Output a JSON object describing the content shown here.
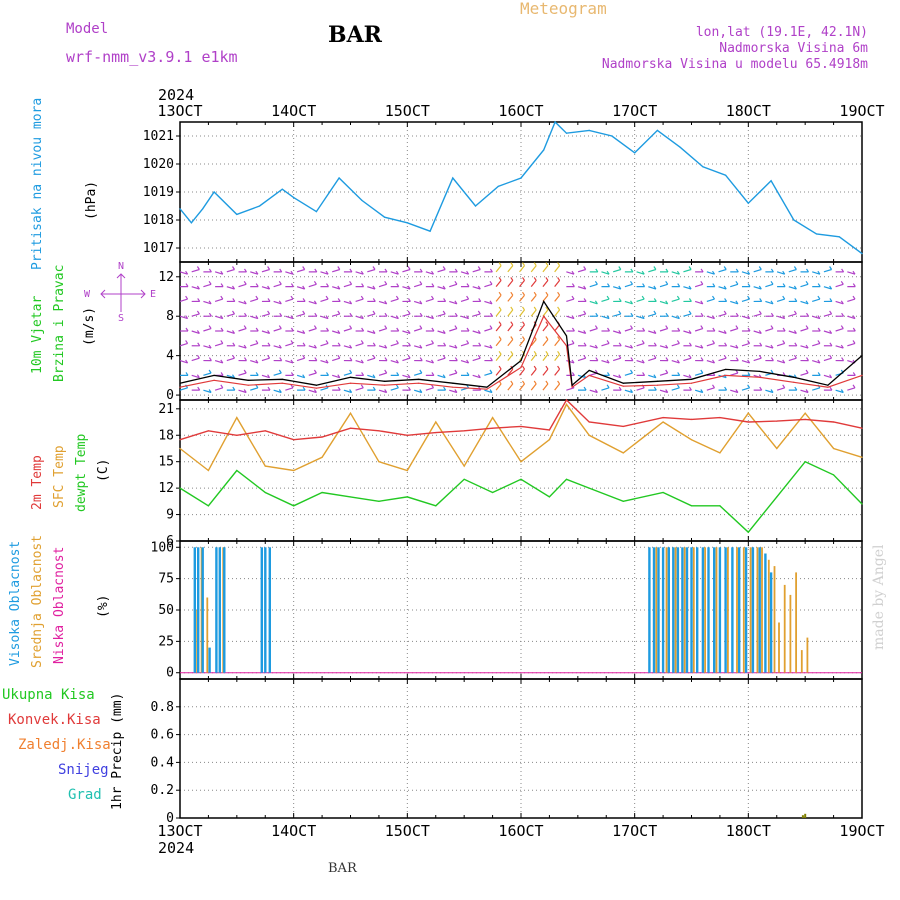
{
  "header": {
    "model_label": "Model",
    "model_name": "wrf-nmm_v3.9.1 e1km",
    "station": "BAR",
    "title": "Meteogram",
    "coords": "lon,lat (19.1E, 42.1N)",
    "altitude": "Nadmorska Visina 6m",
    "model_altitude": "Nadmorska Visina u modelu 65.4918m"
  },
  "footer": {
    "station": "BAR",
    "credit": "made by Angel"
  },
  "colors": {
    "pressure": "#1e9be0",
    "temp2m": "#e03a3a",
    "sfc": "#e0a030",
    "dewpt": "#22c822",
    "high_cloud": "#1e9be0",
    "mid_cloud": "#e0a030",
    "low_cloud": "#e020a0",
    "wind_speed": "#000000",
    "gust": "#e03a3a",
    "purple": "#b040c8"
  },
  "chart_data": [
    {
      "type": "line",
      "panel": "pressure",
      "ylabel_lines": [
        "Pritisak na nivou mora",
        "(hPa)"
      ],
      "ylim": [
        1016.5,
        1021.5
      ],
      "yticks": [
        1017,
        1018,
        1019,
        1020,
        1021
      ],
      "x_ticks": [
        "13OCT",
        "14OCT",
        "15OCT",
        "16OCT",
        "17OCT",
        "18OCT",
        "19OCT"
      ],
      "x_year": "2024",
      "x": [
        13.0,
        13.1,
        13.2,
        13.3,
        13.5,
        13.7,
        13.9,
        14.0,
        14.2,
        14.4,
        14.6,
        14.8,
        15.0,
        15.2,
        15.4,
        15.6,
        15.8,
        16.0,
        16.2,
        16.3,
        16.4,
        16.6,
        16.8,
        17.0,
        17.2,
        17.4,
        17.6,
        17.8,
        18.0,
        18.2,
        18.4,
        18.6,
        18.8,
        19.0
      ],
      "series": [
        {
          "values": [
            1018.4,
            1017.9,
            1018.4,
            1019.0,
            1018.2,
            1018.5,
            1019.1,
            1018.8,
            1018.3,
            1019.5,
            1018.7,
            1018.1,
            1017.9,
            1017.6,
            1019.5,
            1018.5,
            1019.2,
            1019.5,
            1020.5,
            1021.5,
            1021.1,
            1021.2,
            1021.0,
            1020.4,
            1021.2,
            1020.6,
            1019.9,
            1019.6,
            1018.6,
            1019.4,
            1018.0,
            1017.5,
            1017.4,
            1016.8
          ]
        }
      ]
    },
    {
      "type": "line",
      "panel": "wind",
      "ylabel_lines": [
        "10m Vjetar",
        "Brzina i Pravac",
        "(m/s)"
      ],
      "compass": [
        "N",
        "W",
        "E",
        "S"
      ],
      "ylim": [
        -0.5,
        13.5
      ],
      "yticks": [
        0,
        4,
        8,
        12
      ],
      "x": [
        13.0,
        13.3,
        13.6,
        13.9,
        14.2,
        14.5,
        14.8,
        15.1,
        15.4,
        15.7,
        16.0,
        16.2,
        16.4,
        16.45,
        16.6,
        16.9,
        17.2,
        17.5,
        17.8,
        18.1,
        18.4,
        18.7,
        19.0
      ],
      "series": [
        {
          "values": [
            1.2,
            2.0,
            1.5,
            1.6,
            1.0,
            1.8,
            1.4,
            1.6,
            1.2,
            0.8,
            3.5,
            9.5,
            6.0,
            1.0,
            2.5,
            1.2,
            1.4,
            1.6,
            2.6,
            2.4,
            1.8,
            1.0,
            4.0
          ]
        },
        {
          "values": [
            0.8,
            1.5,
            1.0,
            1.2,
            0.7,
            1.2,
            1.0,
            1.2,
            0.8,
            0.6,
            2.8,
            8.0,
            5.0,
            0.8,
            2.0,
            0.9,
            1.0,
            1.2,
            2.0,
            1.8,
            1.3,
            0.8,
            2.0
          ]
        }
      ]
    },
    {
      "type": "line",
      "panel": "temperature",
      "ylabel_lines": [
        "2m Temp",
        "SFC Temp",
        "dewpt Temp",
        "(C)"
      ],
      "ylim": [
        6,
        22
      ],
      "yticks": [
        6,
        9,
        12,
        15,
        18,
        21
      ],
      "x": [
        13.0,
        13.25,
        13.5,
        13.75,
        14.0,
        14.25,
        14.5,
        14.75,
        15.0,
        15.25,
        15.5,
        15.75,
        16.0,
        16.25,
        16.4,
        16.6,
        16.9,
        17.25,
        17.5,
        17.75,
        18.0,
        18.25,
        18.5,
        18.75,
        19.0
      ],
      "series": [
        {
          "values": [
            17.5,
            18.5,
            18.0,
            18.5,
            17.5,
            17.8,
            18.8,
            18.5,
            18.0,
            18.3,
            18.5,
            18.8,
            19.0,
            18.6,
            22.0,
            19.5,
            19.0,
            20.0,
            19.8,
            20.0,
            19.5,
            19.6,
            19.8,
            19.5,
            18.8
          ]
        },
        {
          "values": [
            16.5,
            14.0,
            20.0,
            14.5,
            14.0,
            15.5,
            20.5,
            15.0,
            14.0,
            19.5,
            14.5,
            20.0,
            15.0,
            17.5,
            21.5,
            18.0,
            16.0,
            19.5,
            17.5,
            16.0,
            20.5,
            16.5,
            20.5,
            16.5,
            15.5
          ]
        },
        {
          "values": [
            12.0,
            10.0,
            14.0,
            11.5,
            10.0,
            11.5,
            11.0,
            10.5,
            11.0,
            10.0,
            13.0,
            11.5,
            13.0,
            11.0,
            13.0,
            12.0,
            10.5,
            11.5,
            10.0,
            10.0,
            7.0,
            11.0,
            15.0,
            13.5,
            10.2
          ]
        }
      ]
    },
    {
      "type": "bar",
      "panel": "cloud",
      "ylabel_lines": [
        "Visoka Oblacnost",
        "Srednja Oblacnost",
        "Niska Oblacnost",
        "(%)"
      ],
      "ylim": [
        -5,
        105
      ],
      "yticks": [
        0,
        25,
        50,
        75,
        100
      ],
      "series": [
        {
          "x": [
            13.13,
            13.16,
            13.2,
            13.26,
            13.32,
            13.35,
            13.39,
            13.72,
            13.75,
            13.79,
            17.13,
            17.17,
            17.21,
            17.25,
            17.3,
            17.34,
            17.38,
            17.42,
            17.46,
            17.5,
            17.55,
            17.6,
            17.65,
            17.7,
            17.75,
            17.8,
            17.86,
            17.92,
            17.98,
            18.04,
            18.1,
            18.15,
            18.2
          ],
          "values": [
            100,
            100,
            100,
            20,
            100,
            100,
            100,
            100,
            100,
            100,
            100,
            100,
            100,
            100,
            100,
            100,
            100,
            100,
            100,
            100,
            100,
            100,
            100,
            100,
            100,
            100,
            100,
            100,
            100,
            100,
            100,
            95,
            80
          ]
        },
        {
          "x": [
            13.15,
            13.19,
            13.24,
            13.35,
            13.38,
            17.19,
            17.28,
            17.36,
            17.44,
            17.52,
            17.62,
            17.72,
            17.82,
            17.9,
            17.96,
            18.02,
            18.08,
            18.12,
            18.18,
            18.23,
            18.27,
            18.32,
            18.37,
            18.42,
            18.47,
            18.52
          ],
          "values": [
            50,
            100,
            60,
            100,
            100,
            100,
            100,
            100,
            100,
            100,
            100,
            100,
            100,
            100,
            100,
            100,
            100,
            100,
            90,
            85,
            40,
            70,
            62,
            80,
            18,
            28
          ]
        }
      ]
    },
    {
      "type": "bar",
      "panel": "precip",
      "ylabel_lines": [
        "1hr Precip (mm)"
      ],
      "legend": [
        "Ukupna Kisa",
        "Konvek.Kisa",
        "Zaledj.Kisa",
        "Snijeg",
        "Grad"
      ],
      "ylim": [
        0,
        1.0
      ],
      "yticks": [
        0,
        0.2,
        0.4,
        0.6,
        0.8
      ],
      "x_ticks_bottom": [
        "13OCT",
        "14OCT",
        "15OCT",
        "16OCT",
        "17OCT",
        "18OCT",
        "19OCT"
      ],
      "x_year_bottom": "2024",
      "x": [
        18.48,
        18.5
      ],
      "values": [
        0.02,
        0.03
      ]
    }
  ]
}
